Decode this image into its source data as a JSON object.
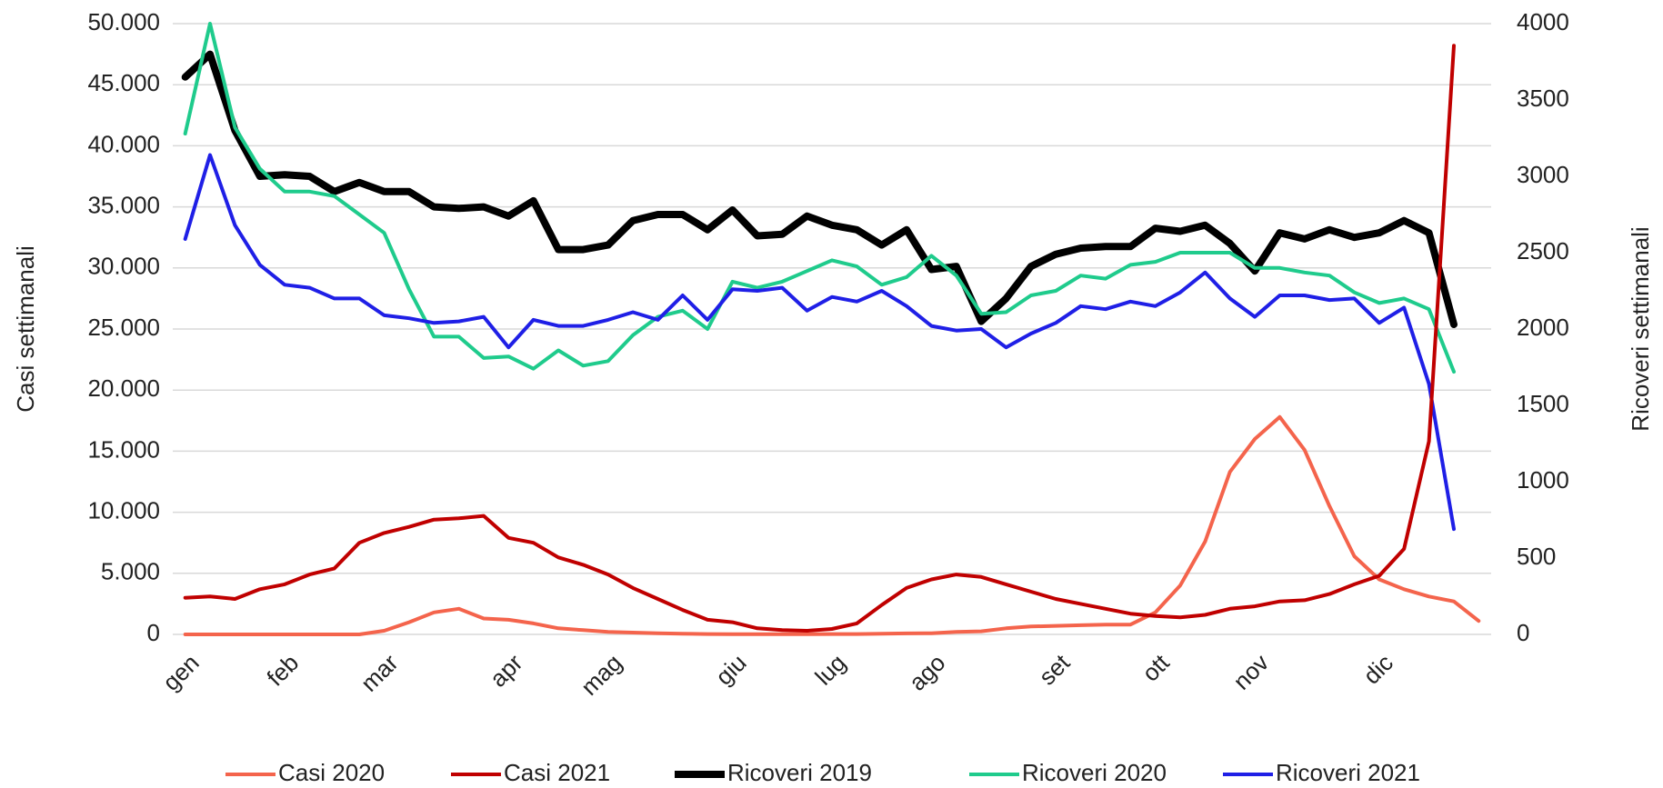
{
  "chart_data": {
    "type": "line",
    "y_label": "Casi settimanali",
    "y2_label": "Ricoveri settimanali",
    "categories": [
      "gen",
      null,
      null,
      null,
      "feb",
      null,
      null,
      null,
      "mar",
      null,
      null,
      null,
      null,
      "apr",
      null,
      null,
      null,
      "mag",
      null,
      null,
      null,
      null,
      "giu",
      null,
      null,
      null,
      "lug",
      null,
      null,
      null,
      "ago",
      null,
      null,
      null,
      null,
      "set",
      null,
      null,
      null,
      "ott",
      null,
      null,
      null,
      "nov",
      null,
      null,
      null,
      null,
      "dic",
      null,
      null,
      null,
      null
    ],
    "ylim": [
      0,
      50000
    ],
    "yticks": [
      0,
      {
        "value": 5000,
        "label": "5.000"
      },
      {
        "value": 10000,
        "label": "10.000"
      },
      {
        "value": 15000,
        "label": "15.000"
      },
      {
        "value": 20000,
        "label": "20.000"
      },
      {
        "value": 25000,
        "label": "25.000"
      },
      {
        "value": 30000,
        "label": "30.000"
      },
      {
        "value": 35000,
        "label": "35.000"
      },
      {
        "value": 40000,
        "label": "40.000"
      },
      {
        "value": 45000,
        "label": "45.000"
      },
      {
        "value": 50000,
        "label": "50.000"
      }
    ],
    "y2lim": [
      0,
      4000
    ],
    "y2ticks": [
      0,
      500,
      1000,
      1500,
      2000,
      2500,
      3000,
      3500,
      4000
    ],
    "grid": true,
    "legend": "bottom",
    "series": [
      {
        "name": "Casi 2020",
        "color": "#f4644c",
        "values": [
          0,
          0,
          0,
          0,
          0,
          0,
          0,
          0,
          300,
          1000,
          1800,
          2100,
          1300,
          1200,
          900,
          500,
          350,
          200,
          150,
          100,
          50,
          30,
          20,
          20,
          20,
          20,
          30,
          30,
          50,
          80,
          100,
          200,
          250,
          500,
          650,
          700,
          750,
          800,
          800,
          1800,
          4000,
          7600,
          13300,
          16000,
          17800,
          15100,
          10500,
          6400,
          4500,
          3700,
          3100,
          2700,
          1100
        ]
      },
      {
        "name": "Casi 2021",
        "color": "#c00000",
        "values": [
          3000,
          3100,
          2900,
          3700,
          4100,
          4900,
          5400,
          7500,
          8300,
          8800,
          9400,
          9500,
          9700,
          7900,
          7500,
          6300,
          5700,
          4900,
          3800,
          2900,
          2000,
          1200,
          1000,
          500,
          350,
          300,
          450,
          900,
          2400,
          3800,
          4500,
          4900,
          4700,
          4100,
          3500,
          2900,
          2500,
          2100,
          1700,
          1500,
          1400,
          1600,
          2100,
          2300,
          2700,
          2800,
          3300,
          4100,
          4800,
          7000,
          15800,
          48200,
          null
        ]
      },
      {
        "name": "Ricoveri 2019",
        "color": "#000000",
        "axis": "y2",
        "values": [
          3650,
          3800,
          3300,
          3000,
          3010,
          3000,
          2900,
          2960,
          2900,
          2900,
          2800,
          2790,
          2800,
          2740,
          2840,
          2520,
          2520,
          2550,
          2710,
          2750,
          2750,
          2650,
          2780,
          2610,
          2620,
          2740,
          2680,
          2650,
          2550,
          2650,
          2390,
          2410,
          2050,
          2200,
          2410,
          2490,
          2530,
          2540,
          2540,
          2660,
          2640,
          2680,
          2560,
          2380,
          2630,
          2590,
          2650,
          2600,
          2630,
          2710,
          2630,
          2030,
          null
        ]
      },
      {
        "name": "Ricoveri 2020",
        "color": "#1fcb8c",
        "axis": "y2",
        "values": [
          3280,
          4000,
          3320,
          3050,
          2900,
          2900,
          2870,
          2750,
          2630,
          2260,
          1950,
          1950,
          1810,
          1820,
          1740,
          1860,
          1760,
          1790,
          1960,
          2080,
          2120,
          2000,
          2310,
          2270,
          2310,
          2380,
          2450,
          2410,
          2290,
          2340,
          2480,
          2350,
          2100,
          2110,
          2220,
          2250,
          2350,
          2330,
          2420,
          2440,
          2500,
          2500,
          2500,
          2400,
          2400,
          2370,
          2350,
          2240,
          2170,
          2200,
          2130,
          1720,
          null
        ]
      },
      {
        "name": "Ricoveri 2021",
        "color": "#1f1fe6",
        "axis": "y2",
        "values": [
          2590,
          3140,
          2680,
          2420,
          2290,
          2270,
          2200,
          2200,
          2090,
          2070,
          2040,
          2050,
          2080,
          1880,
          2060,
          2020,
          2020,
          2060,
          2110,
          2060,
          2220,
          2060,
          2260,
          2250,
          2270,
          2120,
          2210,
          2180,
          2250,
          2150,
          2020,
          1990,
          2000,
          1880,
          1970,
          2040,
          2150,
          2130,
          2180,
          2150,
          2240,
          2370,
          2200,
          2080,
          2220,
          2220,
          2190,
          2200,
          2040,
          2140,
          1640,
          690,
          null
        ]
      }
    ]
  }
}
